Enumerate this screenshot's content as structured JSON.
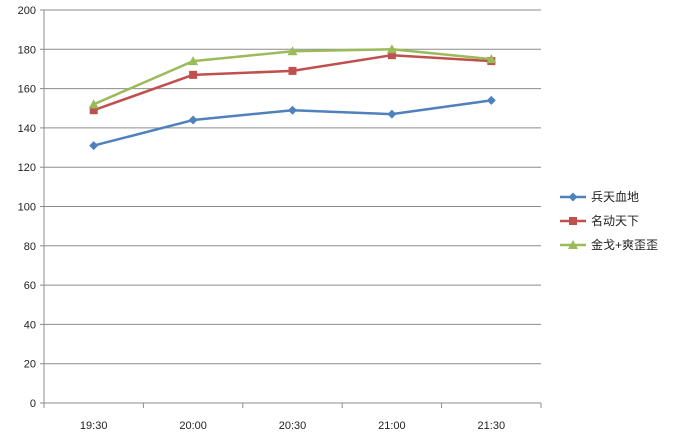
{
  "chart_data": {
    "type": "line",
    "categories": [
      "19:30",
      "20:00",
      "20:30",
      "21:00",
      "21:30"
    ],
    "series": [
      {
        "name": "兵天血地",
        "values": [
          131,
          144,
          149,
          147,
          154
        ],
        "color": "#4F81BD",
        "marker": "diamond"
      },
      {
        "name": "名动天下",
        "values": [
          149,
          167,
          169,
          177,
          174
        ],
        "color": "#C0504D",
        "marker": "square"
      },
      {
        "name": "金戈+爽歪歪",
        "values": [
          152,
          174,
          179,
          180,
          175
        ],
        "color": "#9BBB59",
        "marker": "triangle"
      }
    ],
    "ylim": [
      0,
      200
    ],
    "yticks": [
      "0",
      "20",
      "40",
      "60",
      "80",
      "100",
      "120",
      "140",
      "160",
      "180",
      "200"
    ],
    "grid": true,
    "legend_position": "right",
    "colors": {
      "grid": "#8c8c8c",
      "axis": "#8c8c8c"
    }
  }
}
